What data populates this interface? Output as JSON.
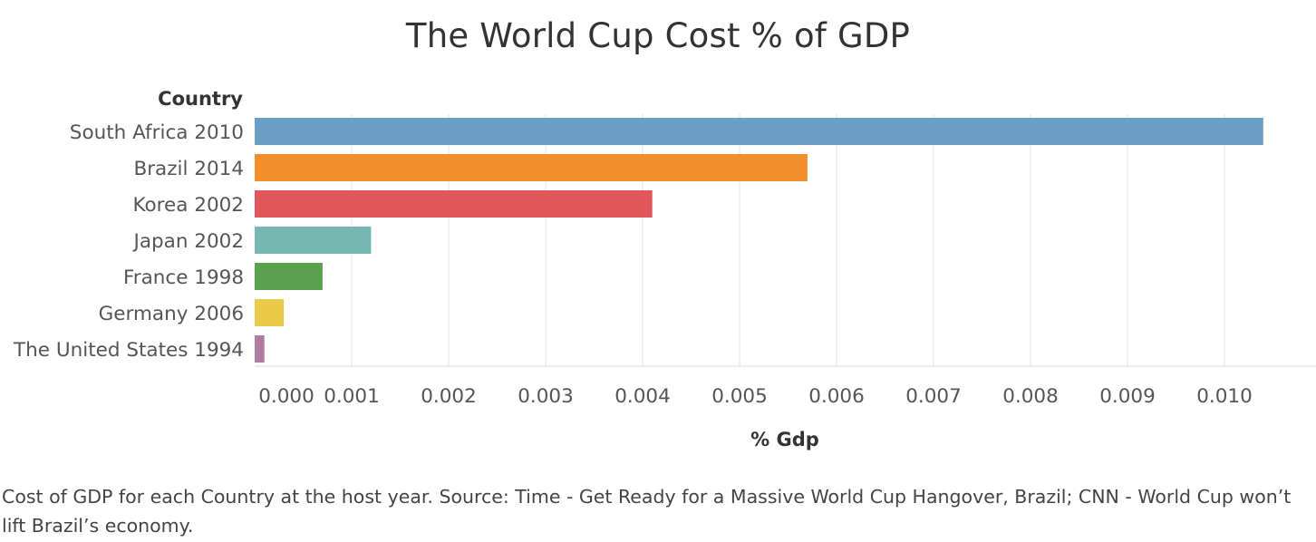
{
  "chart_data": {
    "type": "bar",
    "orientation": "horizontal",
    "title": "The World Cup Cost % of GDP",
    "ylabel": "Country",
    "xlabel": "% Gdp",
    "categories": [
      "South Africa 2010",
      "Brazil 2014",
      "Korea 2002",
      "Japan 2002",
      "France 1998",
      "Germany 2006",
      "The United States 1994"
    ],
    "values": [
      0.0104,
      0.0057,
      0.0041,
      0.0012,
      0.0007,
      0.0003,
      0.0001
    ],
    "colors": [
      "#6a9ec5",
      "#f28e2b",
      "#e15759",
      "#76b7b2",
      "#59a14f",
      "#edc948",
      "#b07aa1"
    ],
    "xlim": [
      0,
      0.0105
    ],
    "xticks": [
      0,
      0.001,
      0.002,
      0.003,
      0.004,
      0.005,
      0.006,
      0.007,
      0.008,
      0.009,
      0.01
    ],
    "xtick_labels": [
      "0.000",
      "0.001",
      "0.002",
      "0.003",
      "0.004",
      "0.005",
      "0.006",
      "0.007",
      "0.008",
      "0.009",
      "0.010"
    ],
    "grid": true,
    "legend": "none"
  },
  "caption": "Cost of GDP for each Country at the host year.  Source: Time - Get Ready for a Massive World Cup Hangover, Brazil;  CNN - World Cup won’t lift Brazil’s economy."
}
